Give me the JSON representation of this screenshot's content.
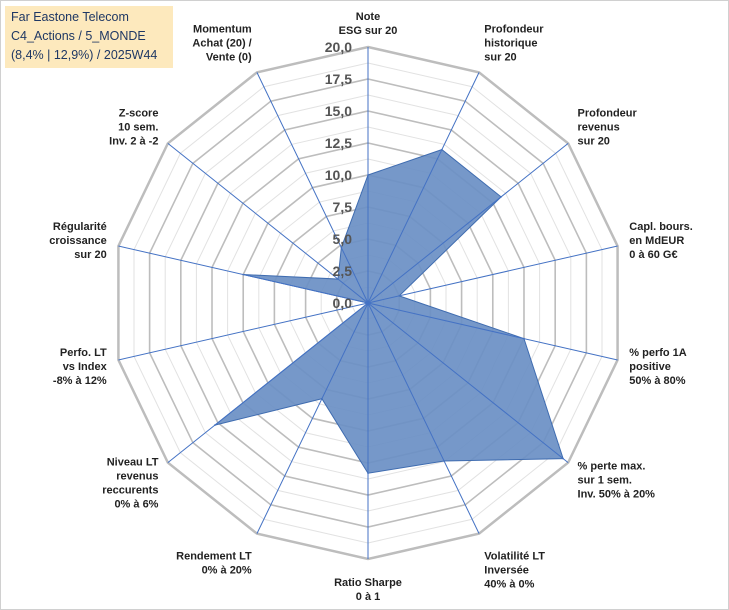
{
  "title_box": {
    "line1": "Far Eastone Telecom",
    "line2": "C4_Actions / 5_MONDE",
    "line3": "(8,4% | 12,9%) / 2025W44"
  },
  "colors": {
    "fill": "#6a8fc4",
    "stroke": "#3f6cb0",
    "grid_major": "#bdbdbd",
    "grid_minor": "#e2e2e2",
    "spoke": "#4472c4",
    "title_bg": "#fde9bd"
  },
  "chart_data": {
    "type": "radar",
    "rmin": 0,
    "rmax": 20,
    "ticks": [
      "0,0",
      "2,5",
      "5,0",
      "7,5",
      "10,0",
      "12,5",
      "15,0",
      "17,5",
      "20,0"
    ],
    "categories": [
      [
        "Note",
        "ESG sur 20"
      ],
      [
        "Profondeur",
        "historique",
        "sur 20"
      ],
      [
        "Profondeur",
        "revenus",
        "sur 20"
      ],
      [
        "Capl. bours.",
        "en MdEUR",
        "0 à 60 G€"
      ],
      [
        "% perfo 1A",
        "positive",
        "50% à 80%"
      ],
      [
        "% perte max.",
        "sur 1 sem.",
        "Inv. 50% à 20%"
      ],
      [
        "Volatilité LT",
        "Inversée",
        "40% à 0%"
      ],
      [
        "Ratio Sharpe",
        "0 à 1"
      ],
      [
        "Rendement LT",
        "0% à 20%"
      ],
      [
        "Niveau LT",
        "revenus",
        "reccurents",
        "0% à 6%"
      ],
      [
        "Perfo. LT",
        "vs Index",
        "-8% à 12%"
      ],
      [
        "Régularité",
        "croissance",
        "sur 20"
      ],
      [
        "Z-score",
        "10 sem.",
        "Inv. 2 à -2"
      ],
      [
        "Momentum",
        "Achat (20) /",
        "Vente (0)"
      ]
    ],
    "series": [
      {
        "values": [
          10.0,
          13.3,
          13.3,
          2.5,
          12.5,
          19.5,
          13.7,
          13.3,
          8.3,
          15.3,
          0.0,
          10.0,
          3.0,
          4.8
        ]
      }
    ]
  }
}
